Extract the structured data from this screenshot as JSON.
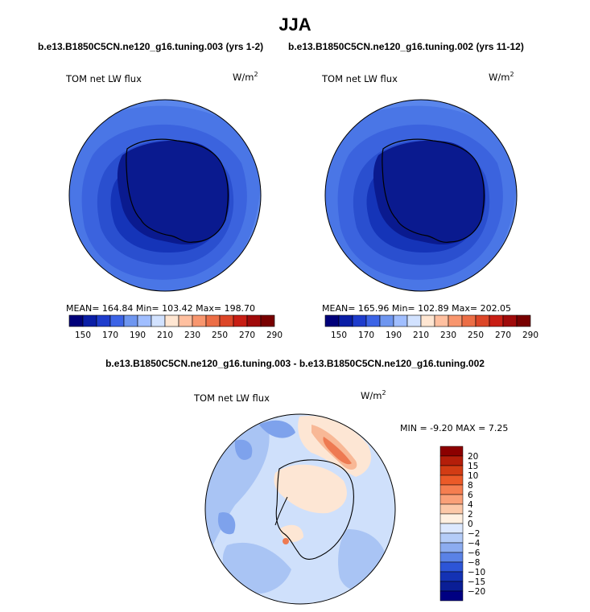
{
  "header": {
    "season": "JJA",
    "case_left": "b.e13.B1850C5CN.ne120_g16.tuning.003 (yrs 1-2)",
    "case_right": "b.e13.B1850C5CN.ne120_g16.tuning.002 (yrs 11-12)",
    "diff_title": "b.e13.B1850C5CN.ne120_g16.tuning.003 - b.e13.B1850C5CN.ne120_g16.tuning.002"
  },
  "panels": [
    {
      "variable": "TOM net LW flux",
      "units": "W/m",
      "units_exp": "2",
      "stats": "MEAN= 164.84   Min= 103.42   Max= 198.70",
      "colorbar": [
        "150",
        "170",
        "190",
        "210",
        "230",
        "250",
        "270",
        "290"
      ]
    },
    {
      "variable": "TOM net LW flux",
      "units": "W/m",
      "units_exp": "2",
      "stats": "MEAN= 165.96   Min= 102.89   Max= 202.05",
      "colorbar": [
        "150",
        "170",
        "190",
        "210",
        "230",
        "250",
        "270",
        "290"
      ]
    }
  ],
  "diff_panel": {
    "variable": "TOM net LW flux",
    "units": "W/m",
    "units_exp": "2",
    "stats": "MIN =  -9.20 MAX =    7.25",
    "colorbar": [
      "20",
      "15",
      "10",
      "8",
      "6",
      "4",
      "2",
      "0",
      "−2",
      "−4",
      "−6",
      "−8",
      "−10",
      "−15",
      "−20"
    ]
  },
  "colors": {
    "main_scale": [
      "#00007a",
      "#0a1ea6",
      "#1e3ccc",
      "#3c64e6",
      "#6e96f0",
      "#a0beff",
      "#d2e2ff",
      "#ffe6d2",
      "#ffc0a0",
      "#f8966e",
      "#ec6e46",
      "#dc4628",
      "#c81e14",
      "#a00a0a",
      "#780000"
    ],
    "diff_scale": [
      "#8c0000",
      "#b41e0a",
      "#d23c14",
      "#eb5a28",
      "#f57e50",
      "#faa078",
      "#fcc8a8",
      "#fff0e1",
      "#dce8ff",
      "#b4ccf8",
      "#8cacf0",
      "#5a82e6",
      "#2d55d7",
      "#1432b4",
      "#0a1e96",
      "#000082"
    ]
  }
}
